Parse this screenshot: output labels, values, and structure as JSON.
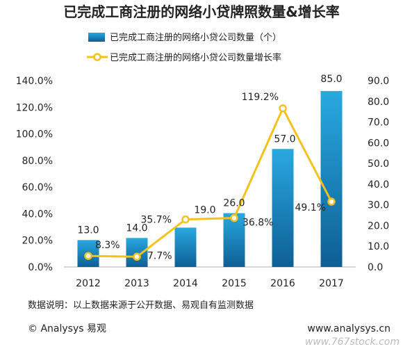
{
  "chart_data": {
    "type": "bar",
    "title": "已完成工商注册的网络小贷牌照数量&增长率",
    "categories": [
      "2012",
      "2013",
      "2014",
      "2015",
      "2016",
      "2017"
    ],
    "series": [
      {
        "name": "已完成工商注册的网络小贷公司数量（个）",
        "type": "bar",
        "axis": "right",
        "values": [
          13.0,
          14.0,
          19.0,
          26.0,
          57.0,
          85.0
        ],
        "labels": [
          "13.0",
          "14.0",
          "19.0",
          "26.0",
          "57.0",
          "85.0"
        ]
      },
      {
        "name": "已完成工商注册的网络小贷公司数量增长率",
        "type": "line",
        "axis": "left",
        "values": [
          8.3,
          7.7,
          35.7,
          36.8,
          119.2,
          49.1
        ],
        "labels": [
          "8.3%",
          "7.7%",
          "35.7%",
          "36.8%",
          "119.2%",
          "49.1%"
        ]
      }
    ],
    "y_left": {
      "ylim": [
        0,
        140
      ],
      "ticks": [
        "0.0%",
        "20.0%",
        "40.0%",
        "60.0%",
        "80.0%",
        "100.0%",
        "120.0%",
        "140.0%"
      ]
    },
    "y_right": {
      "ylim": [
        0,
        90
      ],
      "ticks": [
        "0.0",
        "10.0",
        "20.0",
        "30.0",
        "40.0",
        "50.0",
        "60.0",
        "70.0",
        "80.0",
        "90.0"
      ]
    },
    "grid": false,
    "legend_position": "top",
    "colors": {
      "bar_top": "#29a8e0",
      "bar_bottom": "#0e5f95",
      "line": "#f5c11b",
      "marker_fill": "#ffffff"
    }
  },
  "note": "数据说明：以上数据来源于公开数据、易观自有监测数据",
  "footer": {
    "left": "© Analysys 易观",
    "right": "www.analysys.cn"
  },
  "watermark": "www.767stock.com"
}
